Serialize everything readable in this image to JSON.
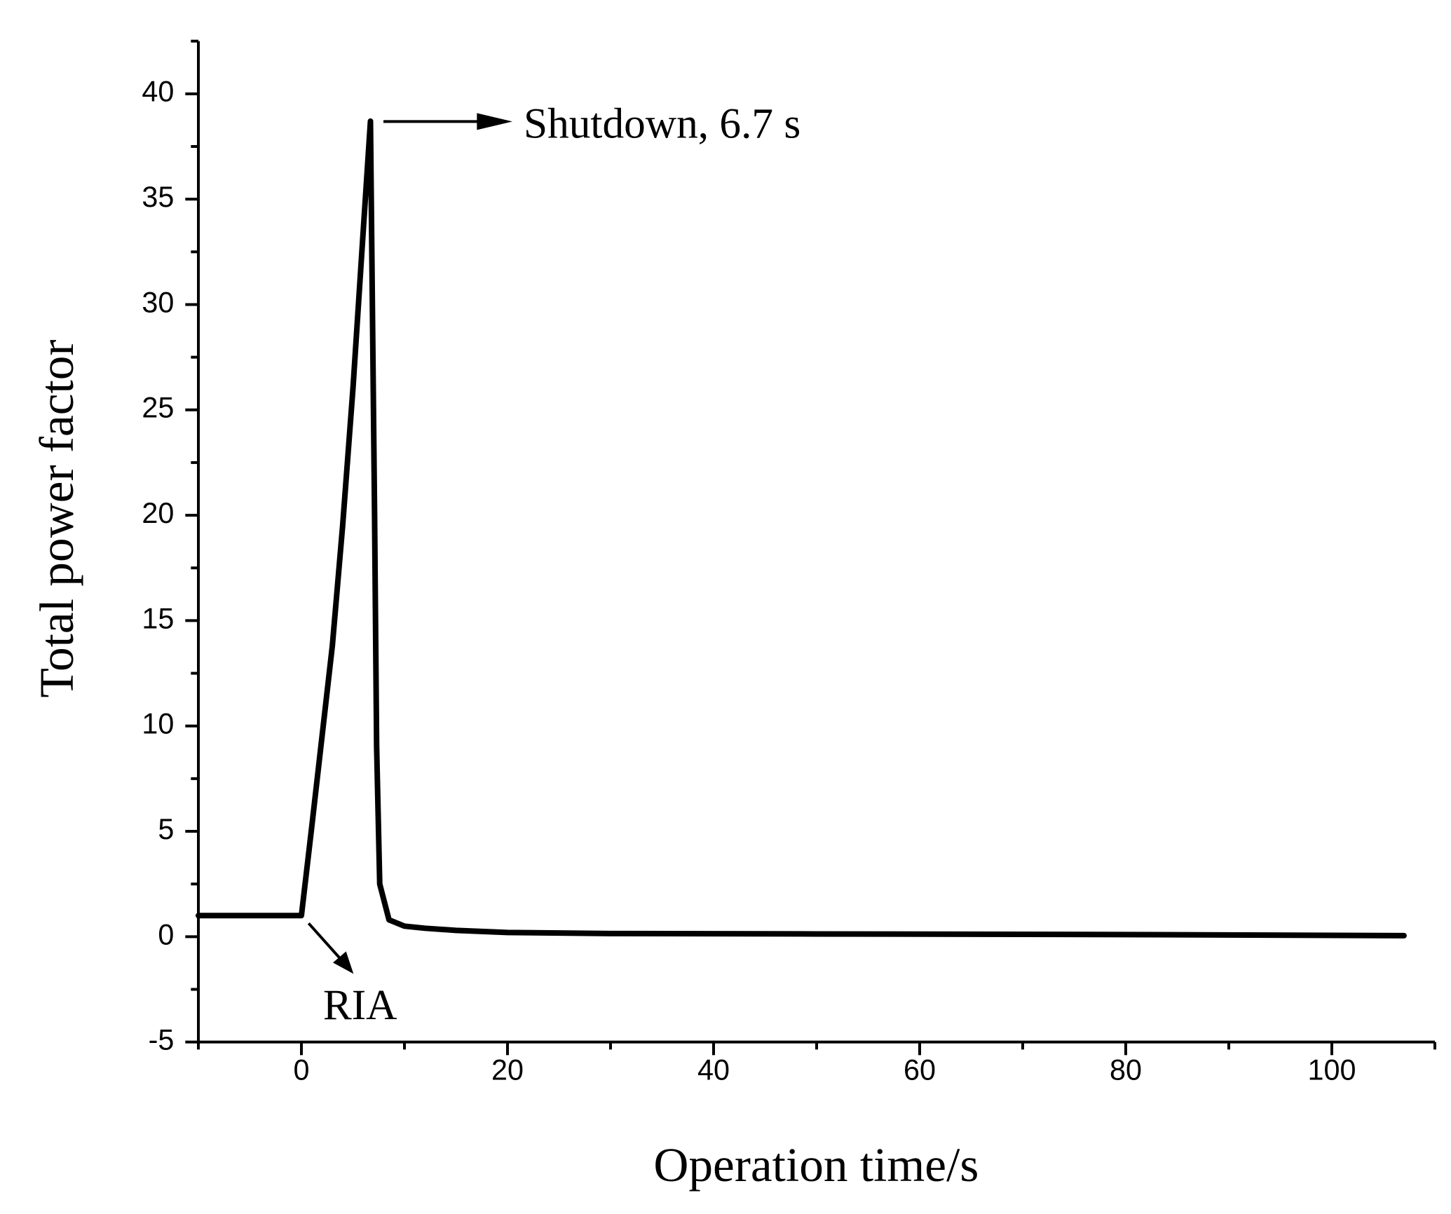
{
  "chart_data": {
    "type": "line",
    "x_label": "Operation time/s",
    "y_label": "Total power factor",
    "annotations": [
      "Shutdown, 6.7 s",
      "RIA"
    ],
    "x": [
      -10,
      0,
      1,
      2,
      3,
      4,
      5,
      6,
      6.7,
      7.1,
      7.3,
      7.6,
      8.5,
      10,
      12,
      15,
      20,
      30,
      50,
      80,
      107
    ],
    "series": [
      {
        "color": "#000000",
        "values": [
          1,
          1,
          5.2,
          9.5,
          13.8,
          19.5,
          26,
          33.5,
          38.7,
          20,
          9,
          2.5,
          0.8,
          0.5,
          0.4,
          0.3,
          0.2,
          0.15,
          0.13,
          0.1,
          0.05
        ]
      }
    ],
    "xlim": [
      -10,
      110
    ],
    "xticks": [
      0,
      20,
      40,
      60,
      80,
      100
    ],
    "xminorticks": [
      -10,
      10,
      30,
      50,
      70,
      90,
      110
    ],
    "ylim": [
      -5,
      42.5
    ],
    "yticks": [
      -5,
      0,
      5,
      10,
      15,
      20,
      25,
      30,
      35,
      40
    ],
    "yminorticks": [
      -2.5,
      2.5,
      7.5,
      12.5,
      17.5,
      22.5,
      27.5,
      32.5,
      37.5,
      42.5
    ]
  }
}
